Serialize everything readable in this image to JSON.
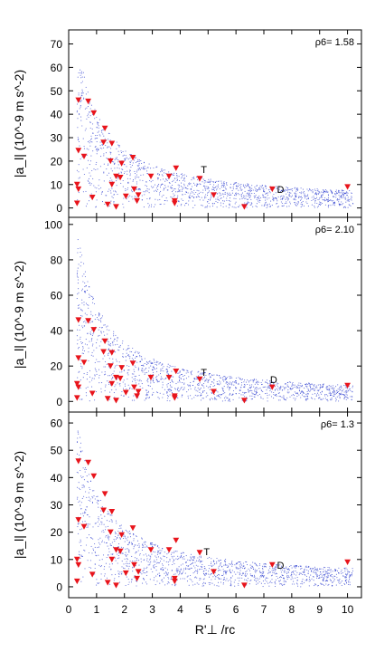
{
  "chart_data": [
    {
      "type": "scatter",
      "ylabel": "|a_l| (10^-9 m s^-2)",
      "annotation": "ρ6= 1.58",
      "xlim": [
        0,
        10.5
      ],
      "ylim": [
        -4,
        76
      ],
      "yticks": [
        0,
        10,
        20,
        30,
        40,
        50,
        60,
        70
      ],
      "points_color": "#e8141b",
      "background_color": "#2233cc",
      "labels": [
        {
          "text": "T",
          "x": 4.85,
          "y": 16.5
        },
        {
          "text": "D",
          "x": 7.6,
          "y": 8.0
        }
      ],
      "points": [
        [
          0.35,
          46
        ],
        [
          0.7,
          45.5
        ],
        [
          0.9,
          40.5
        ],
        [
          0.35,
          24.5
        ],
        [
          0.55,
          22
        ],
        [
          0.3,
          10
        ],
        [
          0.35,
          8
        ],
        [
          0.3,
          2
        ],
        [
          0.85,
          4.5
        ],
        [
          1.3,
          34
        ],
        [
          1.25,
          28
        ],
        [
          1.55,
          27.5
        ],
        [
          1.5,
          20
        ],
        [
          1.7,
          13.5
        ],
        [
          1.85,
          13
        ],
        [
          1.9,
          19
        ],
        [
          2.3,
          21.5
        ],
        [
          1.55,
          10
        ],
        [
          2.05,
          5
        ],
        [
          2.35,
          8
        ],
        [
          2.5,
          5.5
        ],
        [
          1.4,
          1.5
        ],
        [
          1.7,
          0.5
        ],
        [
          2.45,
          3
        ],
        [
          2.95,
          13.5
        ],
        [
          3.6,
          13.5
        ],
        [
          3.85,
          17
        ],
        [
          3.8,
          3
        ],
        [
          3.8,
          2
        ],
        [
          4.7,
          12.5
        ],
        [
          5.2,
          5.5
        ],
        [
          6.3,
          0.5
        ],
        [
          7.3,
          8
        ],
        [
          10.0,
          9
        ]
      ]
    },
    {
      "type": "scatter",
      "ylabel": "|a_l| (10^-9 m s^-2)",
      "annotation": "ρ6= 2.10",
      "xlim": [
        0,
        10.5
      ],
      "ylim": [
        -6,
        104
      ],
      "yticks": [
        0,
        20,
        40,
        60,
        80,
        100
      ],
      "points_color": "#e8141b",
      "background_color": "#2233cc",
      "labels": [
        {
          "text": "T",
          "x": 4.85,
          "y": 16.5
        },
        {
          "text": "D",
          "x": 7.35,
          "y": 12.5
        }
      ],
      "points": [
        [
          0.35,
          46
        ],
        [
          0.7,
          45.5
        ],
        [
          0.9,
          40.5
        ],
        [
          0.35,
          24.5
        ],
        [
          0.55,
          22
        ],
        [
          0.3,
          10
        ],
        [
          0.35,
          8
        ],
        [
          0.3,
          2
        ],
        [
          0.85,
          4.5
        ],
        [
          1.3,
          34
        ],
        [
          1.25,
          28
        ],
        [
          1.55,
          27.5
        ],
        [
          1.5,
          20
        ],
        [
          1.7,
          13.5
        ],
        [
          1.85,
          13
        ],
        [
          1.9,
          19
        ],
        [
          2.3,
          21.5
        ],
        [
          1.55,
          10
        ],
        [
          2.05,
          5
        ],
        [
          2.35,
          8
        ],
        [
          2.5,
          5.5
        ],
        [
          1.4,
          1.5
        ],
        [
          1.7,
          0.5
        ],
        [
          2.45,
          3
        ],
        [
          2.95,
          13.5
        ],
        [
          3.6,
          13.5
        ],
        [
          3.85,
          17
        ],
        [
          3.8,
          3
        ],
        [
          3.8,
          2
        ],
        [
          4.7,
          12.5
        ],
        [
          5.2,
          5.5
        ],
        [
          6.3,
          0.5
        ],
        [
          7.3,
          8
        ],
        [
          10.0,
          9
        ]
      ]
    },
    {
      "type": "scatter",
      "ylabel": "|a_l| (10^-9 m s^-2)",
      "annotation": "ρ6= 1.3",
      "xlabel": "R'⊥ /rc",
      "xlim": [
        0,
        10.5
      ],
      "ylim": [
        -4,
        64
      ],
      "xticks": [
        0,
        1,
        2,
        3,
        4,
        5,
        6,
        7,
        8,
        9,
        10
      ],
      "yticks": [
        0,
        10,
        20,
        30,
        40,
        50,
        60
      ],
      "points_color": "#e8141b",
      "background_color": "#2233cc",
      "labels": [
        {
          "text": "T",
          "x": 4.95,
          "y": 13.0
        },
        {
          "text": "D",
          "x": 7.6,
          "y": 8.0
        }
      ],
      "points": [
        [
          0.35,
          46
        ],
        [
          0.7,
          45.5
        ],
        [
          0.9,
          40.5
        ],
        [
          0.35,
          24.5
        ],
        [
          0.55,
          22
        ],
        [
          0.3,
          10
        ],
        [
          0.35,
          8
        ],
        [
          0.3,
          2
        ],
        [
          0.85,
          4.5
        ],
        [
          1.3,
          34
        ],
        [
          1.25,
          28
        ],
        [
          1.55,
          27.5
        ],
        [
          1.5,
          20
        ],
        [
          1.7,
          13.5
        ],
        [
          1.85,
          13
        ],
        [
          1.9,
          19
        ],
        [
          2.3,
          21.5
        ],
        [
          1.55,
          10
        ],
        [
          2.05,
          5
        ],
        [
          2.35,
          8
        ],
        [
          2.5,
          5.5
        ],
        [
          1.4,
          1.5
        ],
        [
          1.7,
          0.5
        ],
        [
          2.45,
          3
        ],
        [
          2.95,
          13.5
        ],
        [
          3.6,
          13.5
        ],
        [
          3.85,
          17
        ],
        [
          3.8,
          3
        ],
        [
          3.8,
          2
        ],
        [
          4.7,
          12.5
        ],
        [
          5.2,
          5.5
        ],
        [
          6.3,
          0.5
        ],
        [
          7.3,
          8
        ],
        [
          10.0,
          9
        ]
      ]
    }
  ]
}
